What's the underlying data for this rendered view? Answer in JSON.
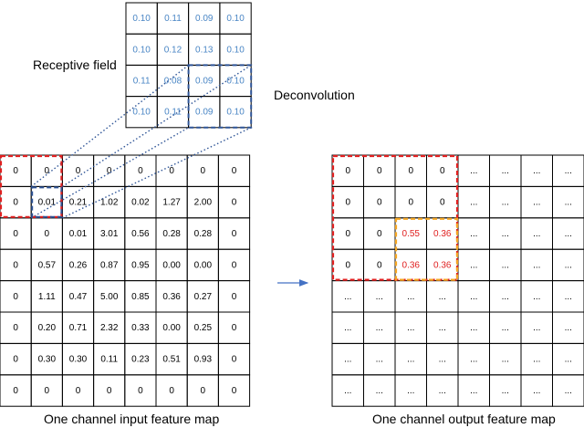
{
  "labels": {
    "receptive_field": "Receptive field",
    "deconvolution": "Deconvolution",
    "input_caption": "One channel input feature map",
    "output_caption": "One channel output feature map"
  },
  "colors": {
    "kernel_text": "#4a86c5",
    "highlight_red": "#e02020",
    "highlight_blue": "#2f5597",
    "highlight_orange": "#f5a623",
    "output_value": "#e02020",
    "grid": "#000000",
    "arrow": "#4472c4"
  },
  "kernel": [
    [
      "0.10",
      "0.11",
      "0.09",
      "0.10"
    ],
    [
      "0.10",
      "0.12",
      "0.13",
      "0.10"
    ],
    [
      "0.11",
      "0.08",
      "0.09",
      "0.10"
    ],
    [
      "0.10",
      "0.11",
      "0.09",
      "0.10"
    ]
  ],
  "input_map": [
    [
      "0",
      "0",
      "0",
      "0",
      "0",
      "0",
      "0",
      "0"
    ],
    [
      "0",
      "0.01",
      "0.21",
      "1.02",
      "0.02",
      "1.27",
      "2.00",
      "0"
    ],
    [
      "0",
      "0",
      "0.01",
      "3.01",
      "0.56",
      "0.28",
      "0.28",
      "0"
    ],
    [
      "0",
      "0.57",
      "0.26",
      "0.87",
      "0.95",
      "0.00",
      "0.00",
      "0"
    ],
    [
      "0",
      "1.11",
      "0.47",
      "5.00",
      "0.85",
      "0.36",
      "0.27",
      "0"
    ],
    [
      "0",
      "0.20",
      "0.71",
      "2.32",
      "0.33",
      "0.00",
      "0.25",
      "0"
    ],
    [
      "0",
      "0.30",
      "0.30",
      "0.11",
      "0.23",
      "0.51",
      "0.93",
      "0"
    ],
    [
      "0",
      "0",
      "0",
      "0",
      "0",
      "0",
      "0",
      "0"
    ]
  ],
  "output_map": [
    [
      "0",
      "0",
      "0",
      "0",
      "...",
      "...",
      "...",
      "..."
    ],
    [
      "0",
      "0",
      "0",
      "0",
      "...",
      "...",
      "...",
      "..."
    ],
    [
      "0",
      "0",
      "0.55",
      "0.36",
      "...",
      "...",
      "...",
      "..."
    ],
    [
      "0",
      "0",
      "0.36",
      "0.36",
      "...",
      "...",
      "...",
      "..."
    ],
    [
      "...",
      "...",
      "...",
      "...",
      "...",
      "...",
      "...",
      "..."
    ],
    [
      "...",
      "...",
      "...",
      "...",
      "...",
      "...",
      "...",
      "..."
    ],
    [
      "...",
      "...",
      "...",
      "...",
      "...",
      "...",
      "...",
      "..."
    ],
    [
      "...",
      "...",
      "...",
      "...",
      "...",
      "...",
      "...",
      "..."
    ]
  ],
  "output_highlighted_cells": [
    [
      2,
      2
    ],
    [
      2,
      3
    ],
    [
      3,
      2
    ],
    [
      3,
      3
    ]
  ]
}
